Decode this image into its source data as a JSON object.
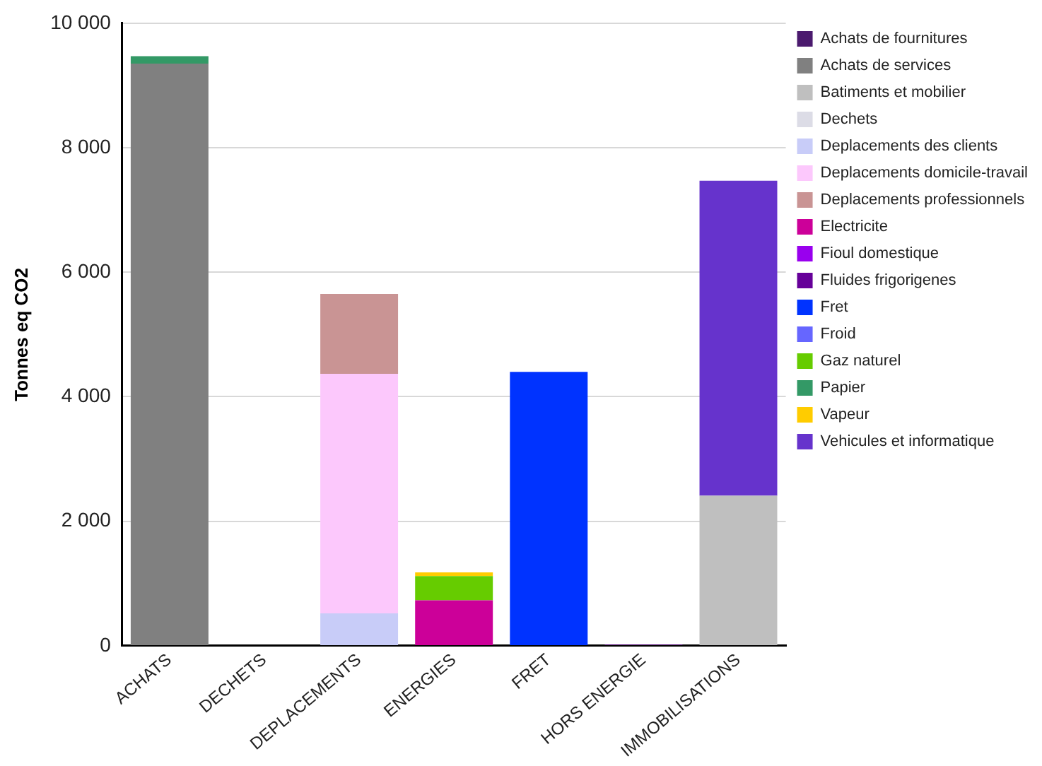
{
  "chart_data": {
    "type": "bar",
    "stacked": true,
    "ylabel": "Tonnes eq CO2",
    "categories": [
      "ACHATS",
      "DECHETS",
      "DEPLACEMENTS",
      "ENERGIES",
      "FRET",
      "HORS ENERGIE",
      "IMMOBILISATIONS"
    ],
    "series": [
      {
        "name": "Achats de fournitures",
        "color": "#4b1a6e",
        "values": [
          null,
          null,
          null,
          null,
          null,
          null,
          null
        ]
      },
      {
        "name": "Achats de services",
        "color": "#808080",
        "values": [
          9350,
          null,
          null,
          null,
          null,
          null,
          null
        ]
      },
      {
        "name": "Batiments et mobilier",
        "color": "#bfbfbf",
        "values": [
          null,
          null,
          null,
          null,
          null,
          null,
          2410
        ]
      },
      {
        "name": "Dechets",
        "color": "#dcdce6",
        "values": [
          null,
          null,
          null,
          null,
          null,
          null,
          null
        ]
      },
      {
        "name": "Deplacements des clients",
        "color": "#c8ccf8",
        "values": [
          null,
          null,
          520,
          null,
          null,
          null,
          null
        ]
      },
      {
        "name": "Deplacements domicile-travail",
        "color": "#fcc8fc",
        "values": [
          null,
          null,
          3850,
          null,
          null,
          null,
          null
        ]
      },
      {
        "name": "Deplacements professionnels",
        "color": "#c99494",
        "values": [
          null,
          null,
          1280,
          null,
          null,
          null,
          null
        ]
      },
      {
        "name": "Electricite",
        "color": "#cc0099",
        "values": [
          null,
          null,
          null,
          730,
          null,
          null,
          null
        ]
      },
      {
        "name": "Fioul domestique",
        "color": "#9900ee",
        "values": [
          null,
          null,
          null,
          null,
          null,
          null,
          null
        ]
      },
      {
        "name": "Fluides frigorigenes",
        "color": "#660099",
        "values": [
          null,
          null,
          null,
          null,
          null,
          20,
          null
        ]
      },
      {
        "name": "Fret",
        "color": "#0033ff",
        "values": [
          null,
          null,
          null,
          null,
          4400,
          null,
          null
        ]
      },
      {
        "name": "Froid",
        "color": "#6666ff",
        "values": [
          null,
          null,
          null,
          null,
          null,
          null,
          null
        ]
      },
      {
        "name": "Gaz naturel",
        "color": "#66cc00",
        "values": [
          null,
          null,
          null,
          390,
          null,
          null,
          null
        ]
      },
      {
        "name": "Papier",
        "color": "#339966",
        "values": [
          120,
          null,
          null,
          null,
          null,
          null,
          null
        ]
      },
      {
        "name": "Vapeur",
        "color": "#ffcc00",
        "values": [
          null,
          null,
          null,
          60,
          null,
          null,
          null
        ]
      },
      {
        "name": "Vehicules et informatique",
        "color": "#6633cc",
        "values": [
          null,
          null,
          null,
          null,
          null,
          null,
          5060
        ]
      }
    ],
    "ylim": [
      0,
      10000
    ],
    "yticks": [
      0,
      {
        "value": 2000,
        "label": "2 000"
      },
      {
        "value": 4000,
        "label": "4 000"
      },
      {
        "value": 6000,
        "label": "6 000"
      },
      {
        "value": 8000,
        "label": "8 000"
      },
      {
        "value": 10000,
        "label": "10 000"
      }
    ],
    "grid": "y",
    "legend": "top right"
  }
}
